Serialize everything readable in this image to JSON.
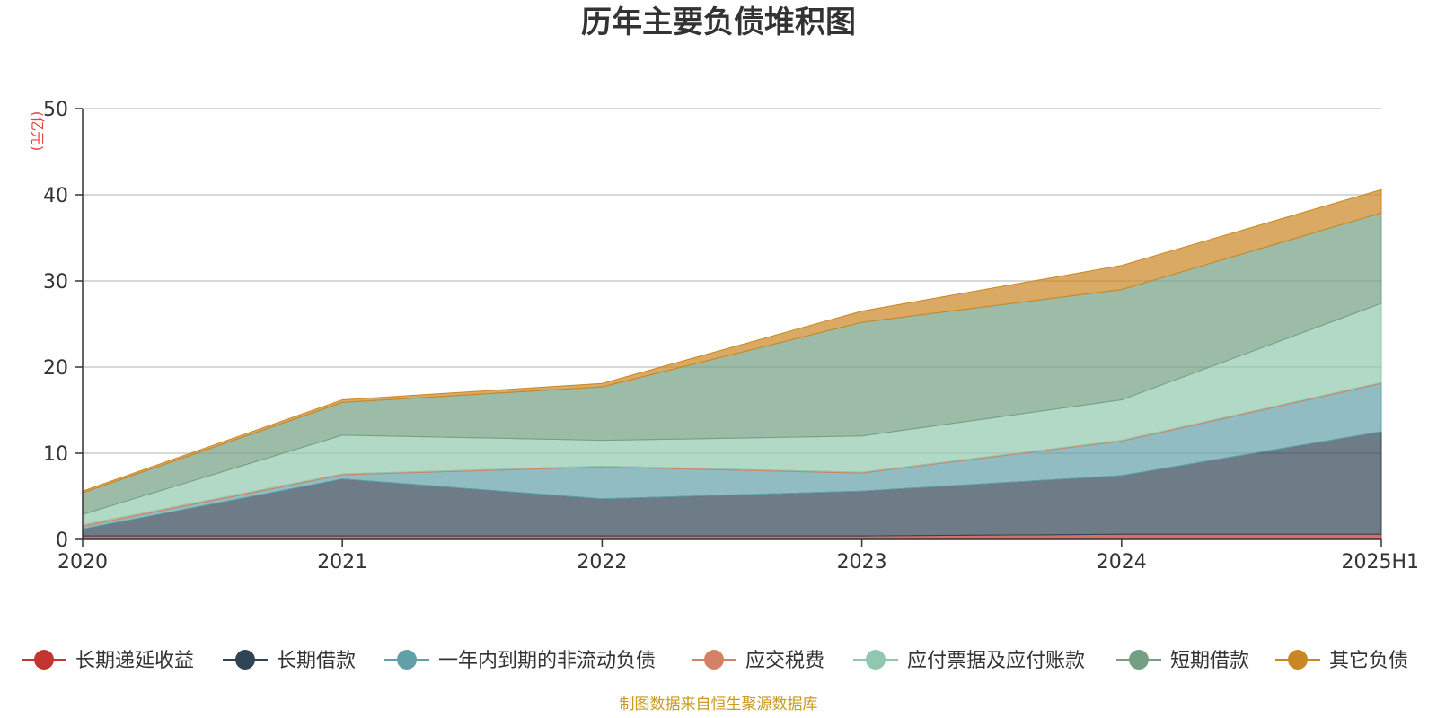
{
  "chart_data": {
    "type": "area",
    "stacked": true,
    "title": "历年主要负债堆积图",
    "unit_label": "(亿元)",
    "categories": [
      "2020",
      "2021",
      "2022",
      "2023",
      "2024",
      "2025H1"
    ],
    "ylim": [
      0,
      50
    ],
    "yticks": [
      "0",
      "10",
      "20",
      "30",
      "40",
      "50"
    ],
    "grid": true,
    "legend_position": "bottom",
    "series": [
      {
        "name": "长期递延收益",
        "color": "#c23531",
        "values": [
          0.4,
          0.4,
          0.4,
          0.4,
          0.6,
          0.6
        ]
      },
      {
        "name": "长期借款",
        "color": "#2f4554",
        "values": [
          0.8,
          6.6,
          4.3,
          5.2,
          6.8,
          11.9
        ]
      },
      {
        "name": "一年内到期的非流动负债",
        "color": "#61a0a8",
        "values": [
          0.3,
          0.5,
          3.7,
          2.1,
          4.0,
          5.6
        ]
      },
      {
        "name": "应交税费",
        "color": "#d48265",
        "values": [
          0.2,
          0.1,
          0.1,
          0.1,
          0.1,
          0.1
        ]
      },
      {
        "name": "应付票据及应付账款",
        "color": "#91c7ae",
        "values": [
          1.2,
          4.5,
          3.0,
          4.2,
          4.7,
          9.2
        ]
      },
      {
        "name": "短期借款",
        "color": "#749f83",
        "values": [
          2.5,
          3.8,
          6.2,
          13.2,
          12.8,
          10.5
        ]
      },
      {
        "name": "其它负债",
        "color": "#ca8622",
        "values": [
          0.2,
          0.3,
          0.4,
          1.3,
          2.8,
          2.7
        ]
      }
    ],
    "source_note": "制图数据来自恒生聚源数据库"
  }
}
